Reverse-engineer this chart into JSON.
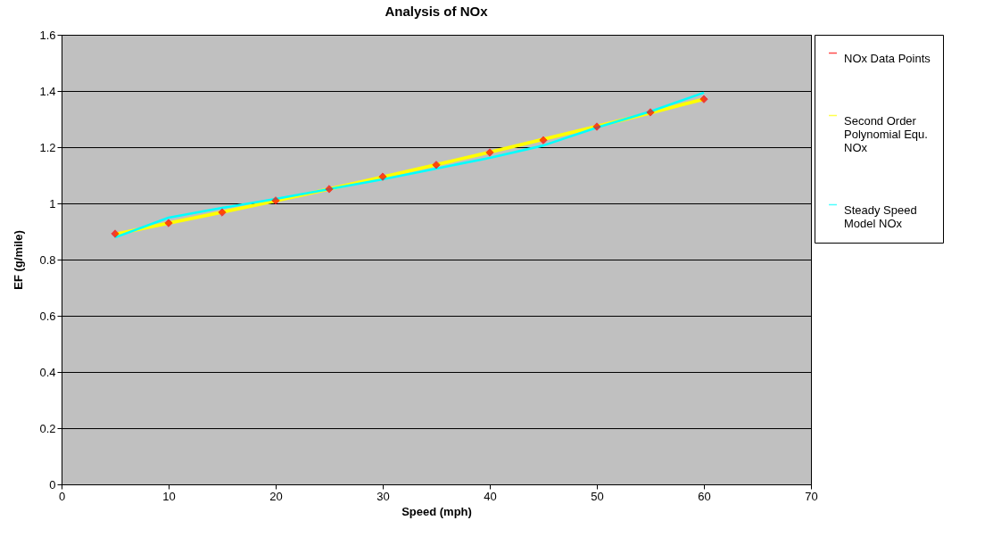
{
  "chart_data": {
    "type": "line",
    "title": "Analysis of NOx",
    "xlabel": "Speed (mph)",
    "ylabel": "EF (g/mile)",
    "x": [
      5,
      10,
      15,
      20,
      25,
      30,
      35,
      40,
      45,
      50,
      55,
      60
    ],
    "series": [
      {
        "name": "NOx Data Points",
        "type": "scatter",
        "marker": "diamond",
        "color": "#ff0000",
        "values": [
          0.892,
          0.93,
          0.968,
          1.01,
          1.051,
          1.095,
          1.137,
          1.181,
          1.225,
          1.273,
          1.324,
          1.371
        ]
      },
      {
        "name": "Second Order Polynomial Equ. NOx",
        "line_style": "solid",
        "color": "#ffff00",
        "values": [
          0.89,
          0.93,
          0.969,
          1.009,
          1.051,
          1.094,
          1.138,
          1.182,
          1.228,
          1.274,
          1.322,
          1.371
        ]
      },
      {
        "name": "Steady Speed Model NOx",
        "line_style": "solid",
        "color": "#00ffff",
        "values": [
          0.879,
          0.949,
          0.984,
          1.016,
          1.051,
          1.086,
          1.124,
          1.162,
          1.206,
          1.27,
          1.327,
          1.394
        ]
      }
    ],
    "xlim": [
      0,
      70
    ],
    "xticks": [
      0,
      10,
      20,
      30,
      40,
      50,
      60,
      70
    ],
    "ylim": [
      0,
      1.6
    ],
    "yticks": [
      0,
      0.2,
      0.4,
      0.6,
      0.8,
      1,
      1.2,
      1.4,
      1.6
    ],
    "grid": "y",
    "legend": "right"
  }
}
